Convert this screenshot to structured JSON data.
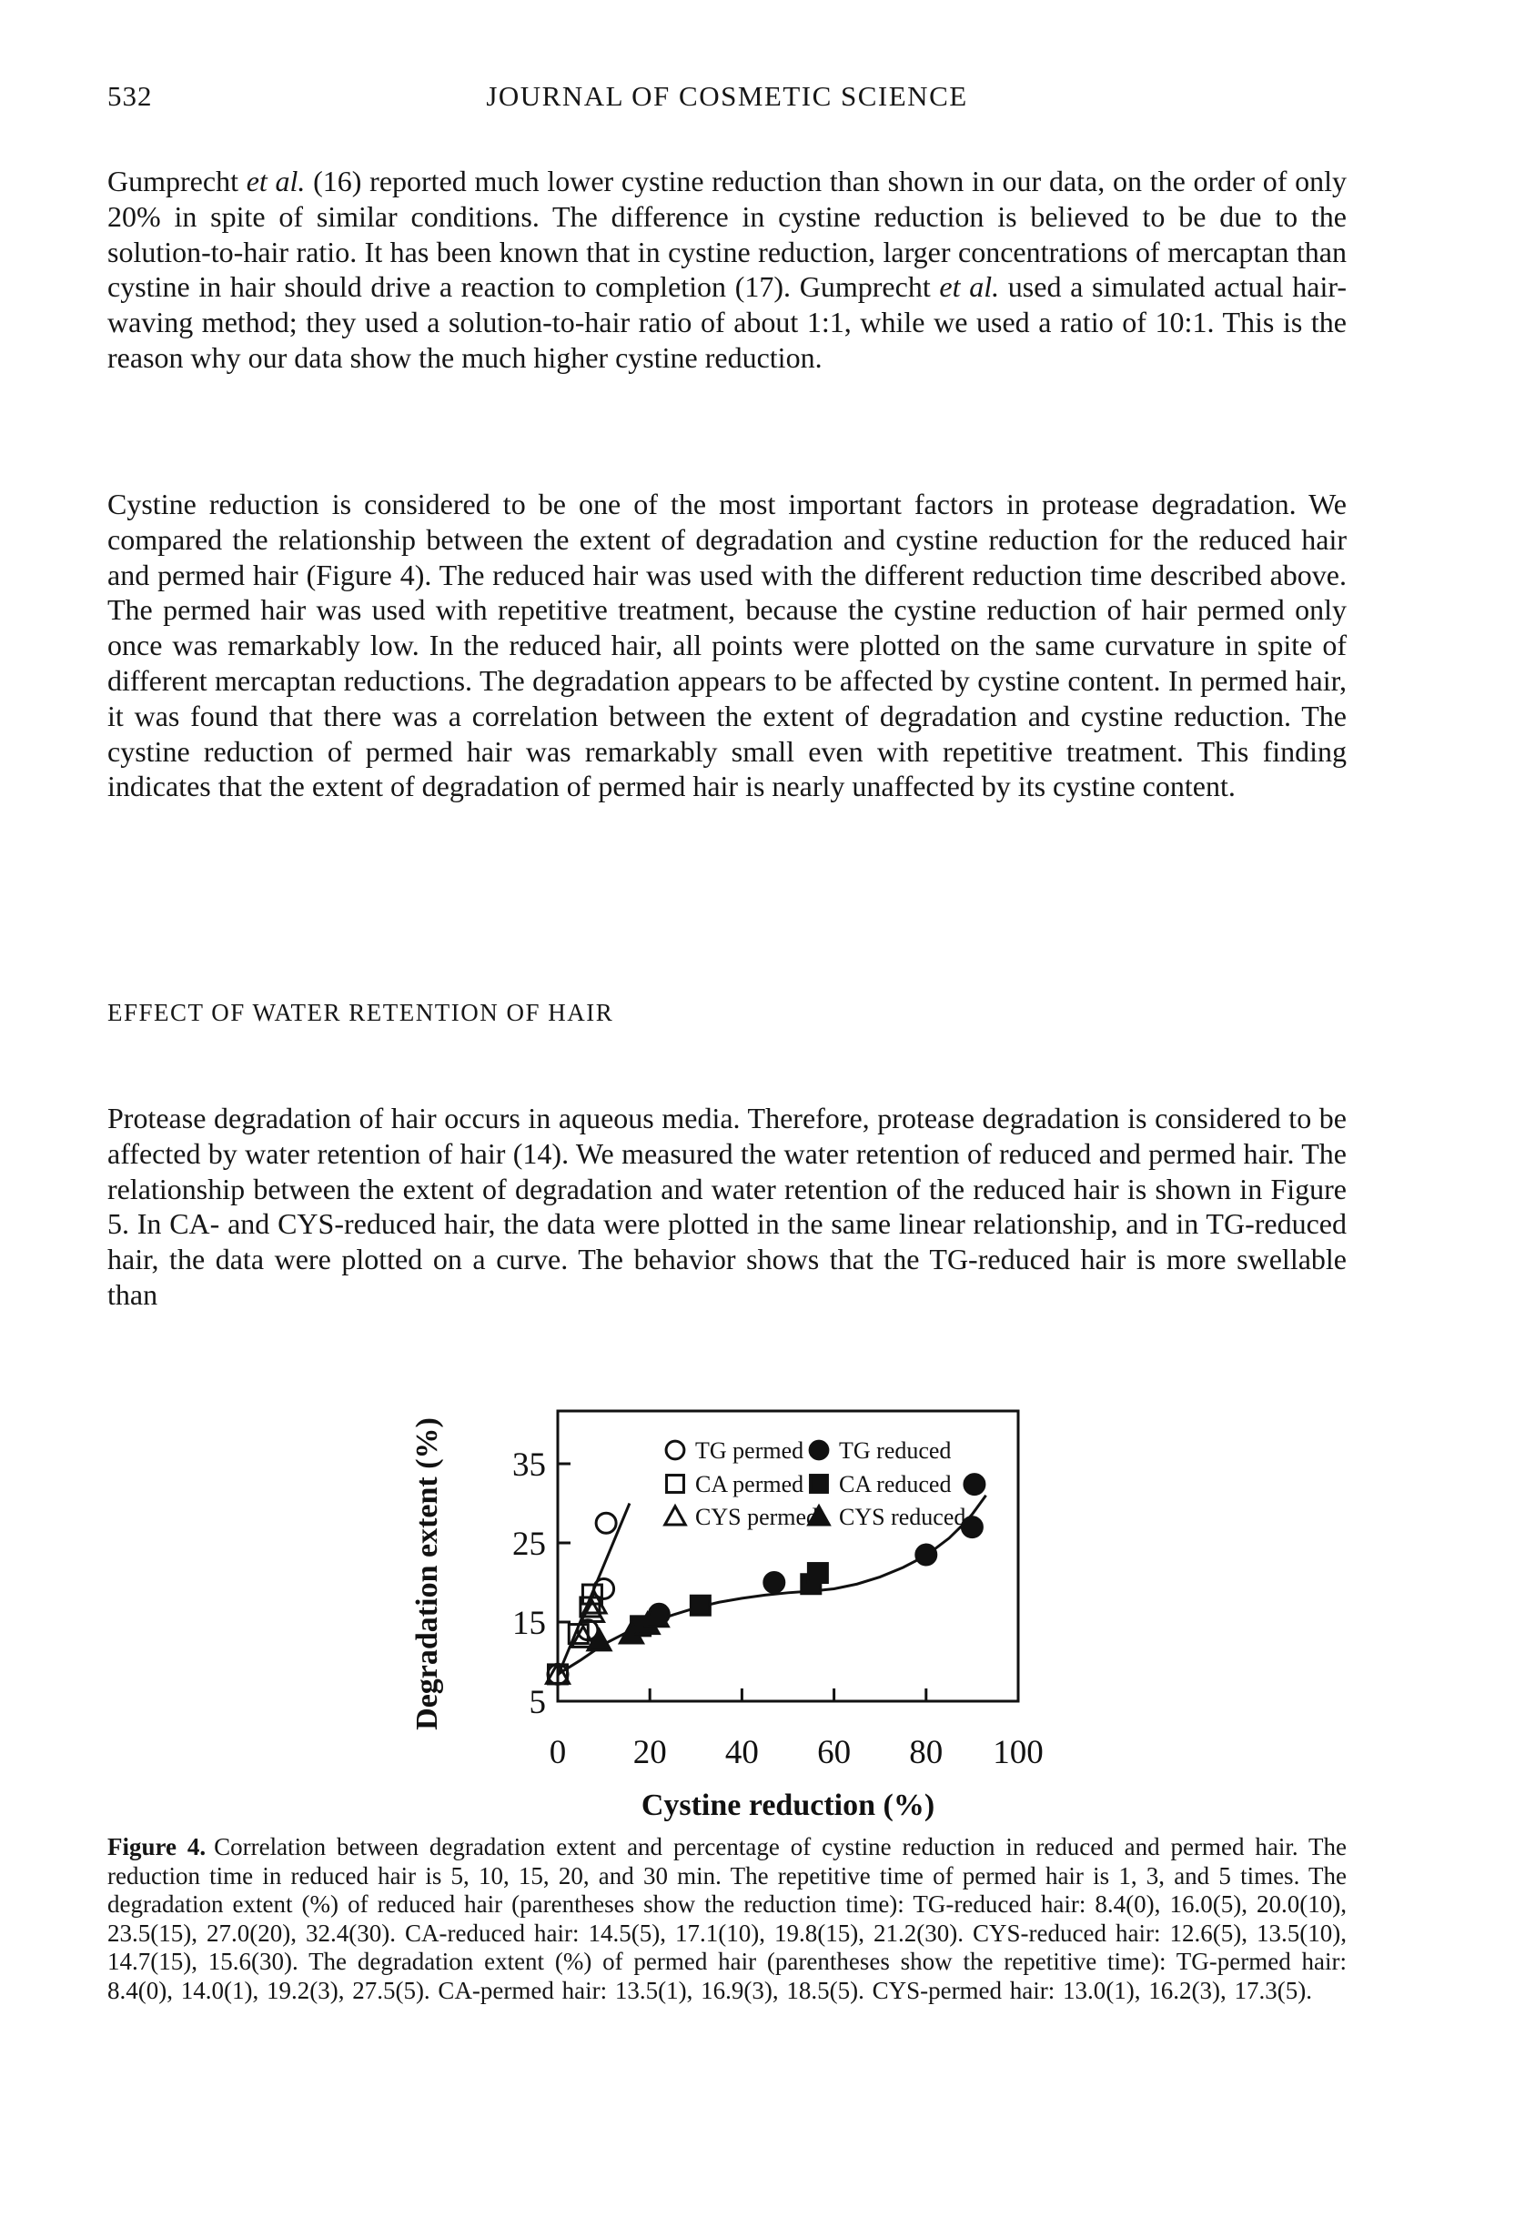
{
  "header": {
    "page_number": "532",
    "journal_title": "JOURNAL OF COSMETIC SCIENCE"
  },
  "paragraphs": [
    {
      "segments": [
        {
          "text": "Gumprecht ",
          "italic": false
        },
        {
          "text": "et al.",
          "italic": true
        },
        {
          "text": " (16) reported much lower cystine reduction than shown in our data, on the order of only 20% in spite of similar conditions. The difference in cystine reduction is believed to be due to the solution-to-hair ratio. It has been known that in cystine reduction, larger concentrations of mercaptan than cystine in hair should drive a reaction to completion (17). Gumprecht ",
          "italic": false
        },
        {
          "text": "et al.",
          "italic": true
        },
        {
          "text": " used a simulated actual hair-waving method; they used a solution-to-hair ratio of about 1:1, while we used a ratio of 10:1. This is the reason why our data show the much higher cystine reduction.",
          "italic": false
        }
      ]
    },
    {
      "segments": [
        {
          "text": "Cystine reduction is considered to be one of the most important factors in protease degradation. We compared the relationship between the extent of degradation and cystine reduction for the reduced hair and permed hair (Figure 4). The reduced hair was used with the different reduction time described above. The permed hair was used with repetitive treatment, because the cystine reduction of hair permed only once was remarkably low. In the reduced hair, all points were plotted on the same curvature in spite of different mercaptan reductions. The degradation appears to be affected by cystine content. In permed hair, it was found that there was a correlation between the extent of degradation and cystine reduction. The cystine reduction of permed hair was remarkably small even with repetitive treatment. This finding indicates that the extent of degradation of permed hair is nearly unaffected by its cystine content.",
          "italic": false
        }
      ]
    },
    {
      "segments": [
        {
          "text": "Protease degradation of hair occurs in aqueous media. Therefore, protease degradation is considered to be affected by water retention of hair (14). We measured the water retention of reduced and permed hair. The relationship between the extent of degradation and water retention of the reduced hair is shown in Figure 5. In CA- and CYS-reduced hair, the data were plotted in the same linear relationship, and in TG-reduced hair, the data were plotted on a curve. The behavior shows that the TG-reduced hair is more swellable than",
          "italic": false
        }
      ]
    }
  ],
  "section_heading": "EFFECT OF WATER RETENTION OF HAIR",
  "figure": {
    "label": "Figure 4.",
    "caption": "Correlation between degradation extent and percentage of cystine reduction in reduced and permed hair. The reduction time in reduced hair is 5, 10, 15, 20, and 30 min. The repetitive time of permed hair is 1, 3, and 5 times. The degradation extent (%) of reduced hair (parentheses show the reduction time): TG-reduced hair: 8.4(0), 16.0(5), 20.0(10), 23.5(15), 27.0(20), 32.4(30). CA-reduced hair: 14.5(5), 17.1(10), 19.8(15), 21.2(30). CYS-reduced hair: 12.6(5), 13.5(10), 14.7(15), 15.6(30). The degradation extent (%) of permed hair (parentheses show the repetitive time): TG-permed hair: 8.4(0), 14.0(1), 19.2(3), 27.5(5). CA-permed hair: 13.5(1), 16.9(3), 18.5(5). CYS-permed hair: 13.0(1), 16.2(3), 17.3(5)."
  },
  "chart_data": {
    "type": "scatter",
    "xlabel": "Cystine reduction (%)",
    "ylabel": "Degradation extent (%)",
    "xlim": [
      0,
      100
    ],
    "ylim": [
      5,
      41
    ],
    "x_ticks": [
      0,
      20,
      40,
      60,
      80,
      100
    ],
    "y_ticks": [
      5,
      15,
      25,
      35
    ],
    "grid": false,
    "legend_position": "inside-top",
    "ink_color": "#111111",
    "series": [
      {
        "name": "TG permed",
        "marker": "circle",
        "fill": "open",
        "points": [
          [
            0,
            8.4
          ],
          [
            6.5,
            14.0
          ],
          [
            10,
            19.2
          ],
          [
            10.5,
            27.5
          ]
        ]
      },
      {
        "name": "CA permed",
        "marker": "square",
        "fill": "open",
        "points": [
          [
            0,
            8.4
          ],
          [
            4.5,
            13.5
          ],
          [
            7,
            16.9
          ],
          [
            7.5,
            18.5
          ]
        ]
      },
      {
        "name": "CYS permed",
        "marker": "triangle",
        "fill": "open",
        "points": [
          [
            0,
            8.4
          ],
          [
            5.5,
            13.0
          ],
          [
            7.5,
            16.2
          ],
          [
            8,
            17.3
          ]
        ]
      },
      {
        "name": "TG reduced",
        "marker": "circle",
        "fill": "solid",
        "points": [
          [
            22,
            16.0
          ],
          [
            47,
            20.0
          ],
          [
            80,
            23.5
          ],
          [
            90,
            27.0
          ],
          [
            90.5,
            32.4
          ]
        ]
      },
      {
        "name": "CA reduced",
        "marker": "square",
        "fill": "solid",
        "points": [
          [
            18,
            14.5
          ],
          [
            31,
            17.1
          ],
          [
            55,
            19.8
          ],
          [
            56.5,
            21.2
          ]
        ]
      },
      {
        "name": "CYS reduced",
        "marker": "triangle",
        "fill": "solid",
        "points": [
          [
            9,
            12.6
          ],
          [
            16,
            13.5
          ],
          [
            19.5,
            14.7
          ],
          [
            21.5,
            15.6
          ]
        ]
      }
    ],
    "fit_lines": [
      {
        "name": "permed-fit-line",
        "points": [
          [
            0,
            8.2
          ],
          [
            15.6,
            30.0
          ]
        ]
      },
      {
        "name": "reduced-fit-curve",
        "points": [
          [
            0,
            8.4
          ],
          [
            5,
            10.2
          ],
          [
            10,
            12.2
          ],
          [
            15,
            13.7
          ],
          [
            20,
            14.9
          ],
          [
            25,
            15.9
          ],
          [
            30,
            16.8
          ],
          [
            35,
            17.5
          ],
          [
            40,
            18.0
          ],
          [
            45,
            18.4
          ],
          [
            50,
            18.7
          ],
          [
            55,
            18.9
          ],
          [
            60,
            19.2
          ],
          [
            65,
            19.8
          ],
          [
            70,
            20.7
          ],
          [
            75,
            21.9
          ],
          [
            80,
            23.4
          ],
          [
            85,
            25.6
          ],
          [
            88,
            27.3
          ],
          [
            90,
            28.6
          ],
          [
            92,
            30.2
          ],
          [
            93,
            31.0
          ]
        ]
      }
    ]
  }
}
